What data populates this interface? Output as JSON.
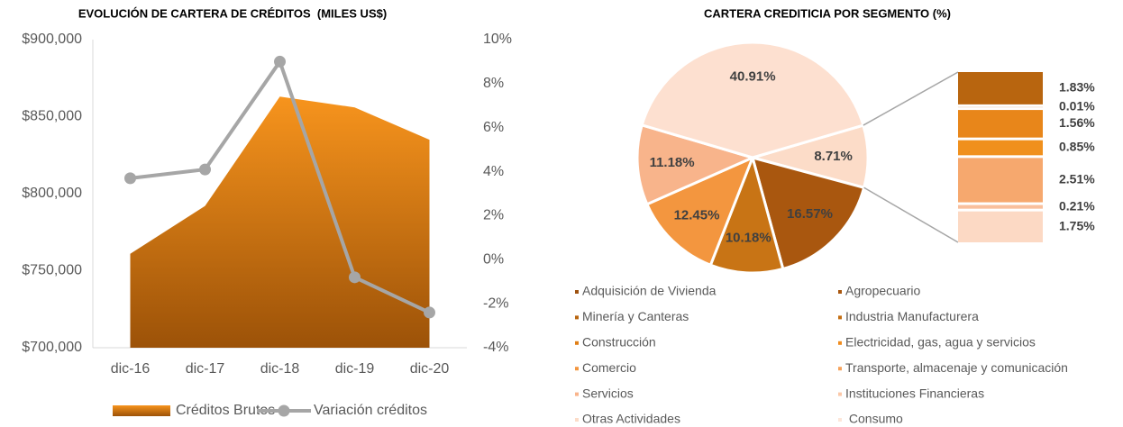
{
  "chart_data": [
    {
      "type": "combo",
      "title": "EVOLUCIÓN DE CARTERA DE CRÉDITOS  (MILES US$)",
      "categories": [
        "dic-16",
        "dic-17",
        "dic-18",
        "dic-19",
        "dic-20"
      ],
      "series": [
        {
          "name": "Créditos Brutos",
          "type": "area",
          "color": "#f7941d",
          "values": [
            761000,
            792000,
            863000,
            856000,
            835000
          ]
        },
        {
          "name": "Variación créditos",
          "type": "line",
          "axis": "y2",
          "color": "#a6a6a6",
          "values": [
            3.7,
            4.1,
            9.0,
            -0.8,
            -2.4
          ]
        }
      ],
      "ylim": [
        700000,
        900000
      ],
      "yticks": [
        {
          "value": 700000,
          "label": "$700,000"
        },
        {
          "value": 750000,
          "label": "$750,000"
        },
        {
          "value": 800000,
          "label": "$800,000"
        },
        {
          "value": 850000,
          "label": "$850,000"
        },
        {
          "value": 900000,
          "label": "$900,000"
        }
      ],
      "y2lim": [
        -4,
        10
      ],
      "y2ticks": [
        {
          "value": -4,
          "label": "-4%"
        },
        {
          "value": -2,
          "label": "-2%"
        },
        {
          "value": 0,
          "label": "0%"
        },
        {
          "value": 2,
          "label": "2%"
        },
        {
          "value": 4,
          "label": "4%"
        },
        {
          "value": 6,
          "label": "6%"
        },
        {
          "value": 8,
          "label": "8%"
        },
        {
          "value": 10,
          "label": "10%"
        }
      ],
      "legend": "bottom"
    },
    {
      "type": "pie-of-bar",
      "title": "CARTERA CREDITICIA POR SEGMENTO (%)",
      "values": [
        8.71,
        16.57,
        10.18,
        12.45,
        11.18,
        40.91
      ],
      "value_labels": [
        "8.71%",
        "16.57%",
        "10.18%",
        "12.45%",
        "11.18%",
        "40.91%"
      ],
      "colors": [
        "#fcdcc8",
        "#a9570f",
        "#c87415",
        "#f3963f",
        "#f8b48b",
        "#fde0d0"
      ],
      "bar": {
        "values": [
          1.83,
          0.01,
          1.56,
          0.85,
          2.51,
          0.21,
          1.75
        ],
        "value_labels": [
          "1.83%",
          "0.01%",
          "1.56%",
          "0.85%",
          "2.51%",
          "0.21%",
          "1.75%"
        ],
        "colors": [
          "#b8650f",
          "#c46e12",
          "#e8861a",
          "#f0901d",
          "#f6a86e",
          "#f9bf9c",
          "#fcd9c4"
        ]
      },
      "legend_items": [
        {
          "name": "Adquisición de Vivienda",
          "color": "#9e5210"
        },
        {
          "name": "Agropecuario",
          "color": "#a9570f"
        },
        {
          "name": "Minería y Canteras",
          "color": "#b8650f"
        },
        {
          "name": "Industria Manufacturera",
          "color": "#c46e12"
        },
        {
          "name": "Construcción",
          "color": "#e07f16"
        },
        {
          "name": "Electricidad, gas, agua y servicios",
          "color": "#f08c1d"
        },
        {
          "name": "Comercio",
          "color": "#f3963f"
        },
        {
          "name": "Transporte, almacenaje y comunicación",
          "color": "#f6a25a"
        },
        {
          "name": "Servicios",
          "color": "#f9b48b"
        },
        {
          "name": "Instituciones Financieras",
          "color": "#fbc8a8"
        },
        {
          "name": "Otras Actividades",
          "color": "#fcdcc8"
        },
        {
          "name": " Consumo",
          "color": "#fde6d9"
        }
      ]
    }
  ]
}
